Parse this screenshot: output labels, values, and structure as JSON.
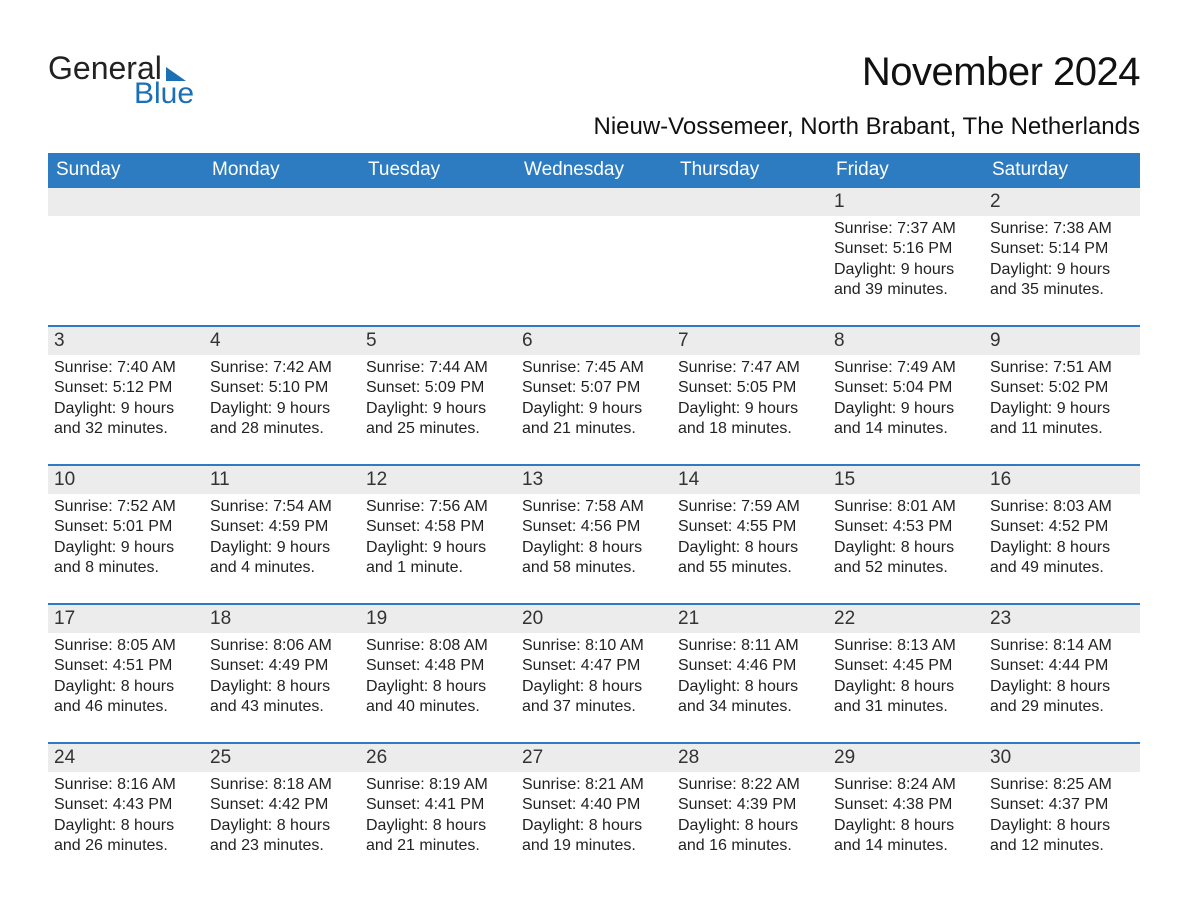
{
  "logo": {
    "text1": "General",
    "text2": "Blue",
    "triangle_color": "#1a6fb5"
  },
  "header": {
    "month_title": "November 2024",
    "location": "Nieuw-Vossemeer, North Brabant, The Netherlands"
  },
  "colors": {
    "header_bg": "#2d7bc0",
    "header_text": "#ffffff",
    "daynum_bg": "#ececec",
    "week_border": "#2d7bc0",
    "body_text": "#222222",
    "page_bg": "#ffffff",
    "logo_blue": "#1a6fb5"
  },
  "typography": {
    "month_title_fontsize": 40,
    "location_fontsize": 24,
    "weekday_fontsize": 19,
    "daynum_fontsize": 19,
    "body_fontsize": 16,
    "font_family": "Arial"
  },
  "calendar": {
    "type": "table",
    "columns": [
      "Sunday",
      "Monday",
      "Tuesday",
      "Wednesday",
      "Thursday",
      "Friday",
      "Saturday"
    ],
    "weeks": [
      [
        null,
        null,
        null,
        null,
        null,
        {
          "day": "1",
          "sunrise": "Sunrise: 7:37 AM",
          "sunset": "Sunset: 5:16 PM",
          "daylight1": "Daylight: 9 hours",
          "daylight2": "and 39 minutes."
        },
        {
          "day": "2",
          "sunrise": "Sunrise: 7:38 AM",
          "sunset": "Sunset: 5:14 PM",
          "daylight1": "Daylight: 9 hours",
          "daylight2": "and 35 minutes."
        }
      ],
      [
        {
          "day": "3",
          "sunrise": "Sunrise: 7:40 AM",
          "sunset": "Sunset: 5:12 PM",
          "daylight1": "Daylight: 9 hours",
          "daylight2": "and 32 minutes."
        },
        {
          "day": "4",
          "sunrise": "Sunrise: 7:42 AM",
          "sunset": "Sunset: 5:10 PM",
          "daylight1": "Daylight: 9 hours",
          "daylight2": "and 28 minutes."
        },
        {
          "day": "5",
          "sunrise": "Sunrise: 7:44 AM",
          "sunset": "Sunset: 5:09 PM",
          "daylight1": "Daylight: 9 hours",
          "daylight2": "and 25 minutes."
        },
        {
          "day": "6",
          "sunrise": "Sunrise: 7:45 AM",
          "sunset": "Sunset: 5:07 PM",
          "daylight1": "Daylight: 9 hours",
          "daylight2": "and 21 minutes."
        },
        {
          "day": "7",
          "sunrise": "Sunrise: 7:47 AM",
          "sunset": "Sunset: 5:05 PM",
          "daylight1": "Daylight: 9 hours",
          "daylight2": "and 18 minutes."
        },
        {
          "day": "8",
          "sunrise": "Sunrise: 7:49 AM",
          "sunset": "Sunset: 5:04 PM",
          "daylight1": "Daylight: 9 hours",
          "daylight2": "and 14 minutes."
        },
        {
          "day": "9",
          "sunrise": "Sunrise: 7:51 AM",
          "sunset": "Sunset: 5:02 PM",
          "daylight1": "Daylight: 9 hours",
          "daylight2": "and 11 minutes."
        }
      ],
      [
        {
          "day": "10",
          "sunrise": "Sunrise: 7:52 AM",
          "sunset": "Sunset: 5:01 PM",
          "daylight1": "Daylight: 9 hours",
          "daylight2": "and 8 minutes."
        },
        {
          "day": "11",
          "sunrise": "Sunrise: 7:54 AM",
          "sunset": "Sunset: 4:59 PM",
          "daylight1": "Daylight: 9 hours",
          "daylight2": "and 4 minutes."
        },
        {
          "day": "12",
          "sunrise": "Sunrise: 7:56 AM",
          "sunset": "Sunset: 4:58 PM",
          "daylight1": "Daylight: 9 hours",
          "daylight2": "and 1 minute."
        },
        {
          "day": "13",
          "sunrise": "Sunrise: 7:58 AM",
          "sunset": "Sunset: 4:56 PM",
          "daylight1": "Daylight: 8 hours",
          "daylight2": "and 58 minutes."
        },
        {
          "day": "14",
          "sunrise": "Sunrise: 7:59 AM",
          "sunset": "Sunset: 4:55 PM",
          "daylight1": "Daylight: 8 hours",
          "daylight2": "and 55 minutes."
        },
        {
          "day": "15",
          "sunrise": "Sunrise: 8:01 AM",
          "sunset": "Sunset: 4:53 PM",
          "daylight1": "Daylight: 8 hours",
          "daylight2": "and 52 minutes."
        },
        {
          "day": "16",
          "sunrise": "Sunrise: 8:03 AM",
          "sunset": "Sunset: 4:52 PM",
          "daylight1": "Daylight: 8 hours",
          "daylight2": "and 49 minutes."
        }
      ],
      [
        {
          "day": "17",
          "sunrise": "Sunrise: 8:05 AM",
          "sunset": "Sunset: 4:51 PM",
          "daylight1": "Daylight: 8 hours",
          "daylight2": "and 46 minutes."
        },
        {
          "day": "18",
          "sunrise": "Sunrise: 8:06 AM",
          "sunset": "Sunset: 4:49 PM",
          "daylight1": "Daylight: 8 hours",
          "daylight2": "and 43 minutes."
        },
        {
          "day": "19",
          "sunrise": "Sunrise: 8:08 AM",
          "sunset": "Sunset: 4:48 PM",
          "daylight1": "Daylight: 8 hours",
          "daylight2": "and 40 minutes."
        },
        {
          "day": "20",
          "sunrise": "Sunrise: 8:10 AM",
          "sunset": "Sunset: 4:47 PM",
          "daylight1": "Daylight: 8 hours",
          "daylight2": "and 37 minutes."
        },
        {
          "day": "21",
          "sunrise": "Sunrise: 8:11 AM",
          "sunset": "Sunset: 4:46 PM",
          "daylight1": "Daylight: 8 hours",
          "daylight2": "and 34 minutes."
        },
        {
          "day": "22",
          "sunrise": "Sunrise: 8:13 AM",
          "sunset": "Sunset: 4:45 PM",
          "daylight1": "Daylight: 8 hours",
          "daylight2": "and 31 minutes."
        },
        {
          "day": "23",
          "sunrise": "Sunrise: 8:14 AM",
          "sunset": "Sunset: 4:44 PM",
          "daylight1": "Daylight: 8 hours",
          "daylight2": "and 29 minutes."
        }
      ],
      [
        {
          "day": "24",
          "sunrise": "Sunrise: 8:16 AM",
          "sunset": "Sunset: 4:43 PM",
          "daylight1": "Daylight: 8 hours",
          "daylight2": "and 26 minutes."
        },
        {
          "day": "25",
          "sunrise": "Sunrise: 8:18 AM",
          "sunset": "Sunset: 4:42 PM",
          "daylight1": "Daylight: 8 hours",
          "daylight2": "and 23 minutes."
        },
        {
          "day": "26",
          "sunrise": "Sunrise: 8:19 AM",
          "sunset": "Sunset: 4:41 PM",
          "daylight1": "Daylight: 8 hours",
          "daylight2": "and 21 minutes."
        },
        {
          "day": "27",
          "sunrise": "Sunrise: 8:21 AM",
          "sunset": "Sunset: 4:40 PM",
          "daylight1": "Daylight: 8 hours",
          "daylight2": "and 19 minutes."
        },
        {
          "day": "28",
          "sunrise": "Sunrise: 8:22 AM",
          "sunset": "Sunset: 4:39 PM",
          "daylight1": "Daylight: 8 hours",
          "daylight2": "and 16 minutes."
        },
        {
          "day": "29",
          "sunrise": "Sunrise: 8:24 AM",
          "sunset": "Sunset: 4:38 PM",
          "daylight1": "Daylight: 8 hours",
          "daylight2": "and 14 minutes."
        },
        {
          "day": "30",
          "sunrise": "Sunrise: 8:25 AM",
          "sunset": "Sunset: 4:37 PM",
          "daylight1": "Daylight: 8 hours",
          "daylight2": "and 12 minutes."
        }
      ]
    ]
  }
}
